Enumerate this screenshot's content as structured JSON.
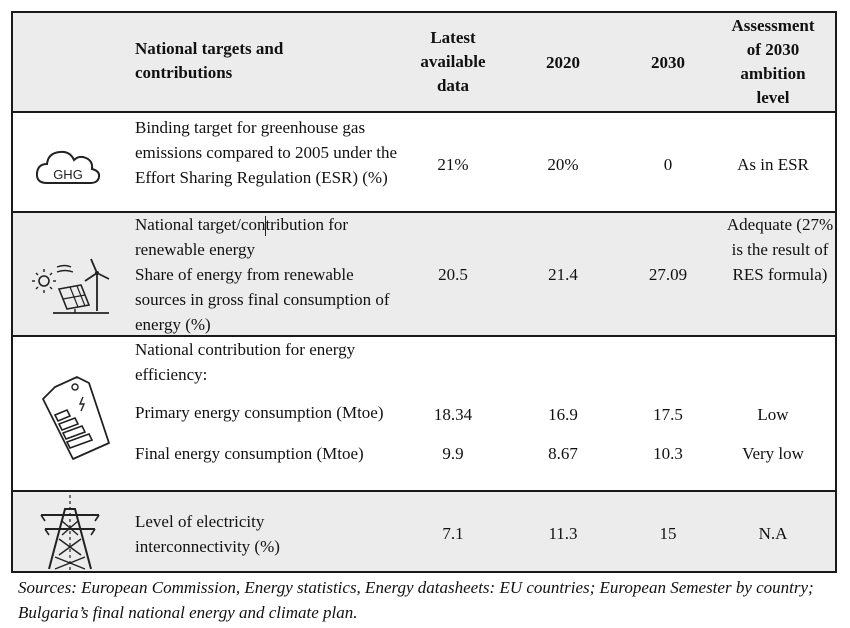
{
  "header": {
    "col_target": "National targets and contributions",
    "col_latest": "Latest available data",
    "col_2020": "2020",
    "col_2030": "2030",
    "col_assessment": "Assessment of 2030 ambition level"
  },
  "rows": [
    {
      "icon": "ghg-cloud-icon",
      "icon_text": "GHG",
      "label": "Binding target for greenhouse gas emissions compared to 2005 under the Effort Sharing Regulation (ESR) (%)",
      "latest": "21%",
      "y2020": "20%",
      "y2030": "0",
      "assessment": "As in ESR"
    },
    {
      "icon": "renewable-energy-icon",
      "label_title": "National target/contribution for renewable energy",
      "label_sub": "Share of energy from renewable sources in gross final consumption of energy (%)",
      "latest": "20.5",
      "y2020": "21.4",
      "y2030": "27.09",
      "assessment": "Adequate (27% is the result of RES formula)"
    },
    {
      "icon": "energy-label-tag-icon",
      "label_title": "National contribution for energy efficiency:",
      "sub_rows": [
        {
          "label": "Primary energy consumption (Mtoe)",
          "latest": "18.34",
          "y2020": "16.9",
          "y2030": "17.5",
          "assessment": "Low"
        },
        {
          "label": "Final energy consumption (Mtoe)",
          "latest": "9.9",
          "y2020": "8.67",
          "y2030": "10.3",
          "assessment": "Very low"
        }
      ]
    },
    {
      "icon": "power-pylon-icon",
      "label": "Level of electricity interconnectivity (%)",
      "latest": "7.1",
      "y2020": "11.3",
      "y2030": "15",
      "assessment": "N.A"
    }
  ],
  "source_note": "Sources: European Commission, Energy statistics, Energy datasheets: EU countries; European Semester by country; Bulgaria’s final national energy and climate plan."
}
